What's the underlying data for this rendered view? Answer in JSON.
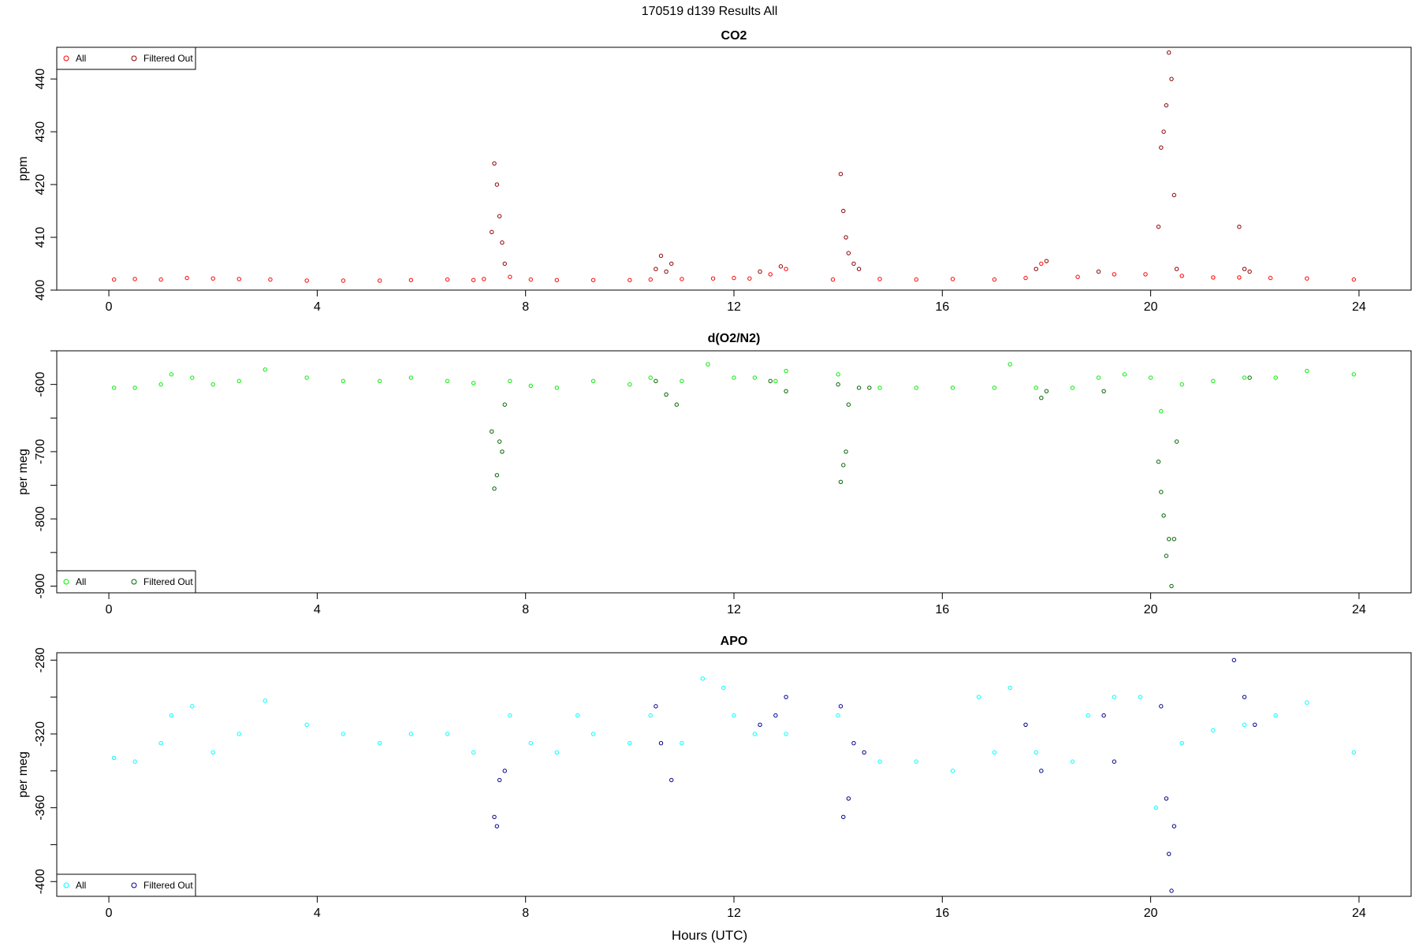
{
  "page_title": "170519   d139   Results All",
  "x_axis_label": "Hours (UTC)",
  "colors": {
    "co2_all": "#ff0000",
    "co2_filtered": "#8b0000",
    "o2_all": "#00ee00",
    "o2_filtered": "#006400",
    "apo_all": "#00ffff",
    "apo_filtered": "#00008b"
  },
  "chart_data": [
    {
      "type": "scatter",
      "id": "co2",
      "title": "CO2",
      "ylabel": "ppm",
      "xlim": [
        -1.0,
        25.0
      ],
      "ylim": [
        400,
        446
      ],
      "x_ticks": [
        0,
        4,
        8,
        12,
        16,
        20,
        24
      ],
      "y_ticks": [
        400,
        410,
        420,
        430,
        440
      ],
      "legend": {
        "position": "top-left",
        "entries": [
          {
            "label": "All",
            "color": "#ff0000"
          },
          {
            "label": "Filtered Out",
            "color": "#8b0000"
          }
        ]
      },
      "series": [
        {
          "name": "All",
          "color": "#ff0000",
          "points": [
            [
              0.1,
              402.0
            ],
            [
              0.5,
              402.1
            ],
            [
              1.0,
              402.0
            ],
            [
              1.5,
              402.3
            ],
            [
              2.0,
              402.2
            ],
            [
              2.5,
              402.1
            ],
            [
              3.1,
              402.0
            ],
            [
              3.8,
              401.8
            ],
            [
              4.5,
              401.8
            ],
            [
              5.2,
              401.8
            ],
            [
              5.8,
              401.9
            ],
            [
              6.5,
              402.0
            ],
            [
              7.0,
              401.9
            ],
            [
              7.2,
              402.1
            ],
            [
              7.7,
              402.5
            ],
            [
              8.1,
              402.0
            ],
            [
              8.6,
              401.9
            ],
            [
              9.3,
              401.9
            ],
            [
              10.0,
              401.9
            ],
            [
              10.4,
              402.0
            ],
            [
              11.0,
              402.1
            ],
            [
              11.6,
              402.2
            ],
            [
              12.0,
              402.3
            ],
            [
              12.3,
              402.2
            ],
            [
              12.7,
              403.0
            ],
            [
              13.0,
              404.0
            ],
            [
              13.9,
              402.0
            ],
            [
              14.8,
              402.1
            ],
            [
              15.5,
              402.0
            ],
            [
              16.2,
              402.1
            ],
            [
              17.0,
              402.0
            ],
            [
              17.6,
              402.3
            ],
            [
              17.9,
              405.0
            ],
            [
              18.6,
              402.5
            ],
            [
              19.3,
              403.0
            ],
            [
              19.9,
              403.0
            ],
            [
              20.6,
              402.7
            ],
            [
              21.2,
              402.4
            ],
            [
              21.7,
              402.4
            ],
            [
              22.3,
              402.3
            ],
            [
              23.0,
              402.2
            ],
            [
              23.9,
              402.0
            ]
          ]
        },
        {
          "name": "Filtered Out",
          "color": "#8b0000",
          "points": [
            [
              7.35,
              411.0
            ],
            [
              7.4,
              424.0
            ],
            [
              7.45,
              420.0
            ],
            [
              7.5,
              414.0
            ],
            [
              7.55,
              409.0
            ],
            [
              7.6,
              405.0
            ],
            [
              10.5,
              404.0
            ],
            [
              10.6,
              406.5
            ],
            [
              10.7,
              403.5
            ],
            [
              10.8,
              405.0
            ],
            [
              12.5,
              403.5
            ],
            [
              12.9,
              404.5
            ],
            [
              14.05,
              422.0
            ],
            [
              14.1,
              415.0
            ],
            [
              14.15,
              410.0
            ],
            [
              14.2,
              407.0
            ],
            [
              14.3,
              405.0
            ],
            [
              14.4,
              404.0
            ],
            [
              17.8,
              404.0
            ],
            [
              18.0,
              405.5
            ],
            [
              19.0,
              403.5
            ],
            [
              20.15,
              412.0
            ],
            [
              20.2,
              427.0
            ],
            [
              20.25,
              430.0
            ],
            [
              20.3,
              435.0
            ],
            [
              20.35,
              445.0
            ],
            [
              20.4,
              440.0
            ],
            [
              20.45,
              418.0
            ],
            [
              20.5,
              404.0
            ],
            [
              21.7,
              412.0
            ],
            [
              21.8,
              404.0
            ],
            [
              21.9,
              403.5
            ]
          ]
        }
      ]
    },
    {
      "type": "scatter",
      "id": "o2n2",
      "title": "d(O2/N2)",
      "ylabel": "per meg",
      "xlim": [
        -1.0,
        25.0
      ],
      "ylim": [
        -910,
        -550
      ],
      "x_ticks": [
        0,
        4,
        8,
        12,
        16,
        20,
        24
      ],
      "y_ticks": [
        -900,
        -800,
        -700,
        -600
      ],
      "y_minor_ticks": [
        -850,
        -750,
        -650,
        -550
      ],
      "legend": {
        "position": "bottom-left",
        "entries": [
          {
            "label": "All",
            "color": "#00ee00"
          },
          {
            "label": "Filtered Out",
            "color": "#006400"
          }
        ]
      },
      "series": [
        {
          "name": "All",
          "color": "#00ee00",
          "points": [
            [
              0.1,
              -605
            ],
            [
              0.5,
              -605
            ],
            [
              1.0,
              -600
            ],
            [
              1.2,
              -585
            ],
            [
              1.6,
              -590
            ],
            [
              2.0,
              -600
            ],
            [
              2.5,
              -595
            ],
            [
              3.0,
              -578
            ],
            [
              3.8,
              -590
            ],
            [
              4.5,
              -595
            ],
            [
              5.2,
              -595
            ],
            [
              5.8,
              -590
            ],
            [
              6.5,
              -595
            ],
            [
              7.0,
              -598
            ],
            [
              7.7,
              -595
            ],
            [
              8.1,
              -602
            ],
            [
              8.6,
              -605
            ],
            [
              9.3,
              -595
            ],
            [
              10.0,
              -600
            ],
            [
              10.4,
              -590
            ],
            [
              11.0,
              -595
            ],
            [
              11.5,
              -570
            ],
            [
              12.0,
              -590
            ],
            [
              12.4,
              -590
            ],
            [
              12.8,
              -595
            ],
            [
              13.0,
              -580
            ],
            [
              14.0,
              -585
            ],
            [
              14.8,
              -605
            ],
            [
              15.5,
              -605
            ],
            [
              16.2,
              -605
            ],
            [
              17.0,
              -605
            ],
            [
              17.3,
              -570
            ],
            [
              17.8,
              -605
            ],
            [
              18.5,
              -605
            ],
            [
              19.0,
              -590
            ],
            [
              19.5,
              -585
            ],
            [
              20.0,
              -590
            ],
            [
              20.2,
              -640
            ],
            [
              20.6,
              -600
            ],
            [
              21.2,
              -595
            ],
            [
              21.8,
              -590
            ],
            [
              22.4,
              -590
            ],
            [
              23.0,
              -580
            ],
            [
              23.9,
              -585
            ]
          ]
        },
        {
          "name": "Filtered Out",
          "color": "#006400",
          "points": [
            [
              7.35,
              -670
            ],
            [
              7.4,
              -755
            ],
            [
              7.45,
              -735
            ],
            [
              7.5,
              -685
            ],
            [
              7.55,
              -700
            ],
            [
              7.6,
              -630
            ],
            [
              10.5,
              -595
            ],
            [
              10.7,
              -615
            ],
            [
              10.9,
              -630
            ],
            [
              12.7,
              -595
            ],
            [
              13.0,
              -610
            ],
            [
              14.0,
              -600
            ],
            [
              14.05,
              -745
            ],
            [
              14.1,
              -720
            ],
            [
              14.15,
              -700
            ],
            [
              14.2,
              -630
            ],
            [
              14.4,
              -605
            ],
            [
              14.6,
              -605
            ],
            [
              17.9,
              -620
            ],
            [
              18.0,
              -610
            ],
            [
              19.1,
              -610
            ],
            [
              20.15,
              -715
            ],
            [
              20.2,
              -760
            ],
            [
              20.25,
              -795
            ],
            [
              20.3,
              -855
            ],
            [
              20.35,
              -830
            ],
            [
              20.4,
              -900
            ],
            [
              20.45,
              -830
            ],
            [
              20.5,
              -685
            ],
            [
              21.9,
              -590
            ]
          ]
        }
      ]
    },
    {
      "type": "scatter",
      "id": "apo",
      "title": "APO",
      "ylabel": "per meg",
      "xlim": [
        -1.0,
        25.0
      ],
      "ylim": [
        -408,
        -276
      ],
      "x_ticks": [
        0,
        4,
        8,
        12,
        16,
        20,
        24
      ],
      "y_ticks": [
        -400,
        -360,
        -320,
        -280
      ],
      "y_minor_ticks": [
        -380,
        -340,
        -300
      ],
      "legend": {
        "position": "bottom-left",
        "entries": [
          {
            "label": "All",
            "color": "#00ffff"
          },
          {
            "label": "Filtered Out",
            "color": "#00008b"
          }
        ]
      },
      "series": [
        {
          "name": "All",
          "color": "#00ffff",
          "points": [
            [
              0.1,
              -333
            ],
            [
              0.5,
              -335
            ],
            [
              1.0,
              -325
            ],
            [
              1.2,
              -310
            ],
            [
              1.6,
              -305
            ],
            [
              2.0,
              -330
            ],
            [
              2.5,
              -320
            ],
            [
              3.0,
              -302
            ],
            [
              3.8,
              -315
            ],
            [
              4.5,
              -320
            ],
            [
              5.2,
              -325
            ],
            [
              5.8,
              -320
            ],
            [
              6.5,
              -320
            ],
            [
              7.0,
              -330
            ],
            [
              7.7,
              -310
            ],
            [
              8.1,
              -325
            ],
            [
              8.6,
              -330
            ],
            [
              9.0,
              -310
            ],
            [
              9.3,
              -320
            ],
            [
              10.0,
              -325
            ],
            [
              10.4,
              -310
            ],
            [
              11.0,
              -325
            ],
            [
              11.4,
              -290
            ],
            [
              11.8,
              -295
            ],
            [
              12.0,
              -310
            ],
            [
              12.4,
              -320
            ],
            [
              13.0,
              -320
            ],
            [
              14.0,
              -310
            ],
            [
              14.8,
              -335
            ],
            [
              15.5,
              -335
            ],
            [
              16.2,
              -340
            ],
            [
              16.7,
              -300
            ],
            [
              17.0,
              -330
            ],
            [
              17.3,
              -295
            ],
            [
              17.8,
              -330
            ],
            [
              18.5,
              -335
            ],
            [
              18.8,
              -310
            ],
            [
              19.3,
              -300
            ],
            [
              19.8,
              -300
            ],
            [
              20.1,
              -360
            ],
            [
              20.6,
              -325
            ],
            [
              21.2,
              -318
            ],
            [
              21.8,
              -315
            ],
            [
              22.4,
              -310
            ],
            [
              23.0,
              -303
            ],
            [
              23.9,
              -330
            ]
          ]
        },
        {
          "name": "Filtered Out",
          "color": "#00008b",
          "points": [
            [
              7.4,
              -365
            ],
            [
              7.45,
              -370
            ],
            [
              7.5,
              -345
            ],
            [
              7.6,
              -340
            ],
            [
              10.5,
              -305
            ],
            [
              10.6,
              -325
            ],
            [
              10.8,
              -345
            ],
            [
              12.5,
              -315
            ],
            [
              12.8,
              -310
            ],
            [
              13.0,
              -300
            ],
            [
              14.05,
              -305
            ],
            [
              14.1,
              -365
            ],
            [
              14.2,
              -355
            ],
            [
              14.3,
              -325
            ],
            [
              14.5,
              -330
            ],
            [
              17.6,
              -315
            ],
            [
              17.9,
              -340
            ],
            [
              19.1,
              -310
            ],
            [
              19.3,
              -335
            ],
            [
              20.2,
              -305
            ],
            [
              20.3,
              -355
            ],
            [
              20.35,
              -385
            ],
            [
              20.4,
              -405
            ],
            [
              20.45,
              -370
            ],
            [
              21.6,
              -280
            ],
            [
              21.8,
              -300
            ],
            [
              22.0,
              -315
            ]
          ]
        }
      ]
    }
  ]
}
